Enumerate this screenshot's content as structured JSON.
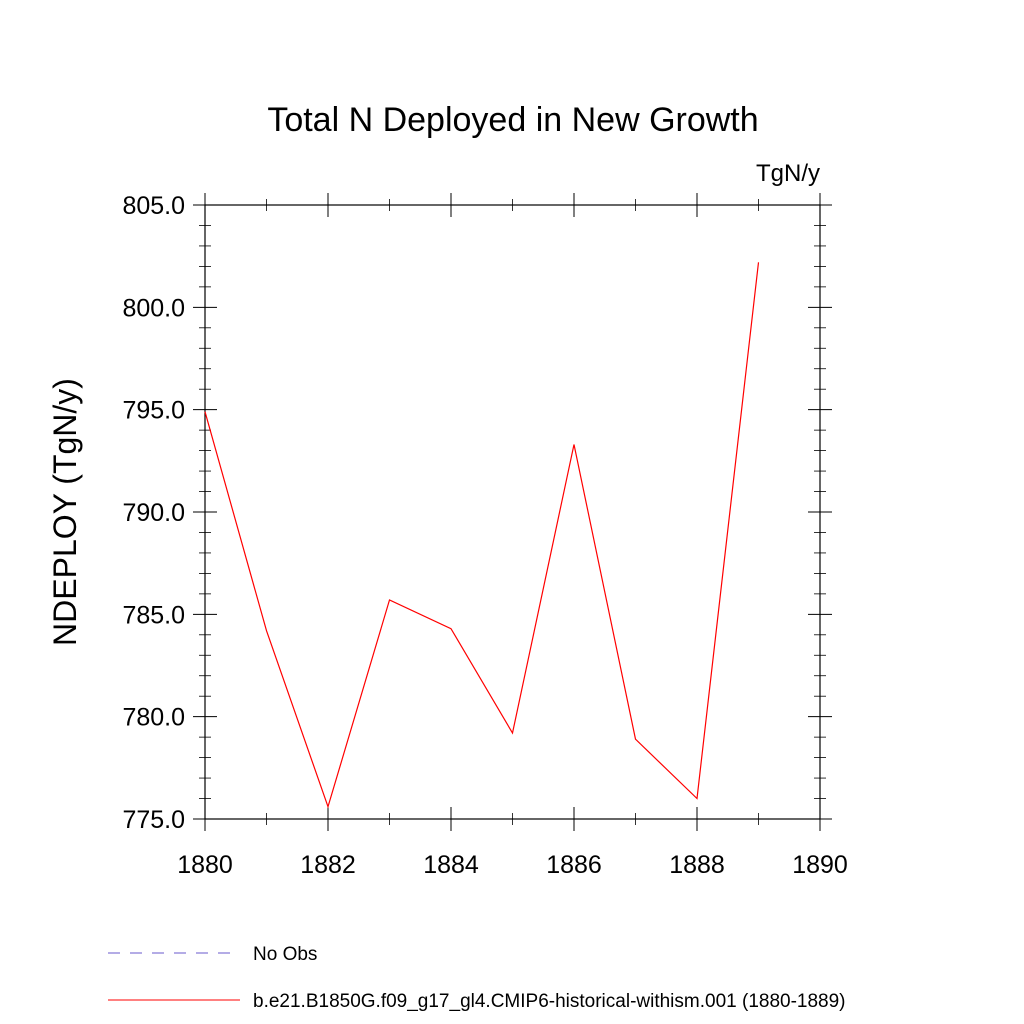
{
  "chart_data": {
    "type": "line",
    "title": "Total N Deployed in New Growth",
    "units_label": "TgN/y",
    "ylabel": "NDEPLOY  (TgN/y)",
    "xlabel": "",
    "xlim": [
      1880,
      1890
    ],
    "ylim": [
      775.0,
      805.0
    ],
    "x_ticks": [
      "1880",
      "1882",
      "1884",
      "1886",
      "1888",
      "1890"
    ],
    "y_ticks": [
      "775.0",
      "780.0",
      "785.0",
      "790.0",
      "795.0",
      "800.0",
      "805.0"
    ],
    "grid": false,
    "legend_position": "bottom",
    "series": [
      {
        "name": "b.e21.B1850G.f09_g17_gl4.CMIP6-historical-withism.001 (1880-1889)",
        "color": "#ff0000",
        "style": "solid",
        "x": [
          1880,
          1881,
          1882,
          1883,
          1884,
          1885,
          1886,
          1887,
          1888,
          1889
        ],
        "values": [
          794.9,
          784.2,
          775.6,
          785.7,
          784.3,
          779.2,
          793.3,
          778.9,
          776.0,
          802.2
        ]
      }
    ],
    "legend": [
      {
        "label": "No Obs",
        "color": "#6a5acd",
        "style": "dashed"
      },
      {
        "label": "b.e21.B1850G.f09_g17_gl4.CMIP6-historical-withism.001 (1880-1889)",
        "color": "#ff0000",
        "style": "solid"
      }
    ]
  }
}
